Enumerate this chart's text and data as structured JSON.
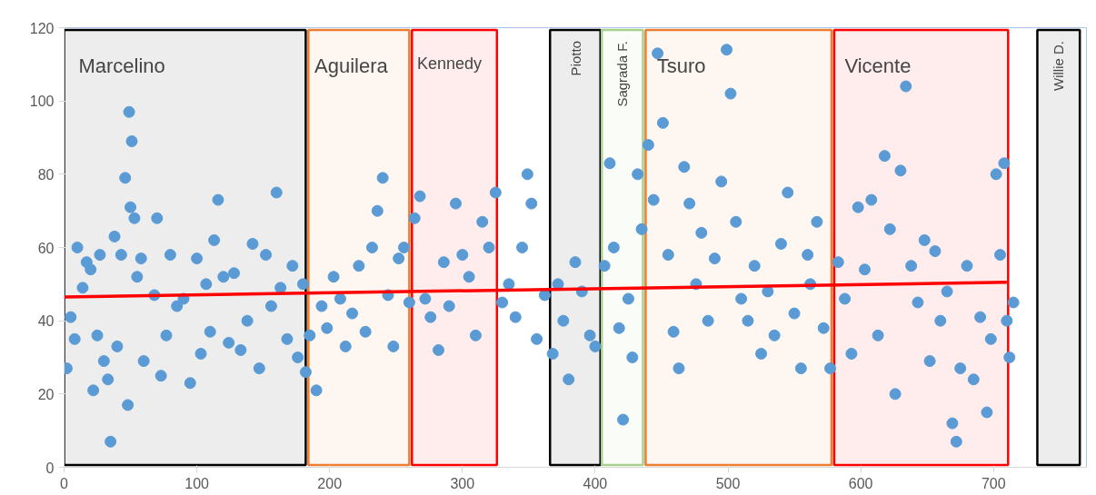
{
  "chart_data": {
    "type": "scatter",
    "xlim": [
      0,
      770
    ],
    "ylim": [
      0,
      120
    ],
    "xticks": [
      0,
      100,
      200,
      300,
      400,
      500,
      600,
      700
    ],
    "yticks": [
      0,
      20,
      40,
      60,
      80,
      100,
      120
    ],
    "grid": false,
    "marker": "circle",
    "series": [
      {
        "color": "#5b9bd5",
        "x": [
          2,
          5,
          8,
          10,
          14,
          17,
          20,
          22,
          25,
          27,
          30,
          33,
          35,
          38,
          40,
          43,
          46,
          48,
          50,
          53,
          55,
          58,
          60,
          49,
          51,
          68,
          70,
          73,
          77,
          80,
          85,
          90,
          95,
          100,
          103,
          107,
          110,
          113,
          116,
          120,
          124,
          128,
          133,
          138,
          142,
          147,
          152,
          156,
          160,
          163,
          168,
          172,
          176,
          180,
          182,
          185,
          190,
          194,
          198,
          203,
          208,
          212,
          217,
          222,
          227,
          232,
          236,
          240,
          244,
          248,
          252,
          256,
          260,
          264,
          268,
          272,
          276,
          282,
          286,
          290,
          295,
          300,
          305,
          310,
          315,
          320,
          325,
          330,
          335,
          340,
          345,
          349,
          352,
          356,
          362,
          368,
          372,
          376,
          380,
          385,
          390,
          396,
          400,
          407,
          411,
          414,
          418,
          421,
          425,
          428,
          432,
          435,
          440,
          444,
          447,
          451,
          455,
          459,
          463,
          467,
          471,
          476,
          480,
          485,
          490,
          495,
          499,
          502,
          506,
          510,
          515,
          520,
          525,
          530,
          535,
          540,
          545,
          550,
          555,
          560,
          562,
          567,
          572,
          577,
          583,
          588,
          593,
          598,
          603,
          608,
          613,
          618,
          622,
          626,
          630,
          634,
          638,
          643,
          648,
          652,
          656,
          660,
          665,
          669,
          672,
          675,
          680,
          685,
          690,
          695,
          698,
          702,
          705,
          708,
          710,
          712,
          715
        ],
        "values": [
          27,
          41,
          35,
          60,
          49,
          56,
          54,
          21,
          36,
          58,
          29,
          24,
          7,
          63,
          33,
          58,
          79,
          17,
          71,
          68,
          52,
          57,
          29,
          97,
          89,
          47,
          68,
          25,
          36,
          58,
          44,
          46,
          23,
          57,
          31,
          50,
          37,
          62,
          73,
          52,
          34,
          53,
          32,
          40,
          61,
          27,
          58,
          44,
          75,
          49,
          35,
          55,
          30,
          50,
          26,
          36,
          21,
          44,
          38,
          52,
          46,
          33,
          42,
          55,
          37,
          60,
          70,
          79,
          47,
          33,
          57,
          60,
          45,
          68,
          74,
          46,
          41,
          32,
          56,
          44,
          72,
          58,
          52,
          36,
          67,
          60,
          75,
          45,
          50,
          41,
          60,
          80,
          72,
          35,
          47,
          31,
          50,
          40,
          24,
          56,
          48,
          36,
          33,
          55,
          83,
          60,
          38,
          13,
          46,
          30,
          80,
          65,
          88,
          73,
          113,
          94,
          58,
          37,
          27,
          82,
          72,
          50,
          64,
          40,
          57,
          78,
          114,
          102,
          67,
          46,
          40,
          55,
          31,
          48,
          36,
          61,
          75,
          42,
          27,
          58,
          50,
          67,
          38,
          27,
          56,
          46,
          31,
          71,
          54,
          73,
          36,
          85,
          65,
          20,
          81,
          104,
          55,
          45,
          62,
          29,
          59,
          40,
          48,
          12,
          7,
          27,
          55,
          24,
          41,
          15,
          35,
          80,
          58,
          83,
          40,
          30,
          45
        ]
      },
      {
        "type": "line",
        "marker": "none",
        "color": "#ff0000",
        "x": [
          0,
          710
        ],
        "values": [
          46.5,
          50.5
        ]
      }
    ],
    "bands": [
      {
        "axis": "x",
        "from": 0,
        "to": 182,
        "label": "Marcelino",
        "color": "#000000"
      },
      {
        "axis": "x",
        "from": 184,
        "to": 260,
        "label": "Aguilera",
        "color": "#ed7d31"
      },
      {
        "axis": "x",
        "from": 262,
        "to": 326,
        "label": "Kennedy",
        "color": "#ff0000"
      },
      {
        "axis": "x",
        "from": 366,
        "to": 404,
        "label": "Piotto",
        "color": "#000000"
      },
      {
        "axis": "x",
        "from": 405,
        "to": 436,
        "label": "Sagrada F.",
        "color": "#a9d18e"
      },
      {
        "axis": "x",
        "from": 438,
        "to": 578,
        "label": "Tsuro",
        "color": "#ed7d31"
      },
      {
        "axis": "x",
        "from": 580,
        "to": 711,
        "label": "Vicente",
        "color": "#ff0000"
      },
      {
        "axis": "x",
        "from": 733,
        "to": 765,
        "label": "Willie D.",
        "color": "#000000"
      }
    ]
  }
}
